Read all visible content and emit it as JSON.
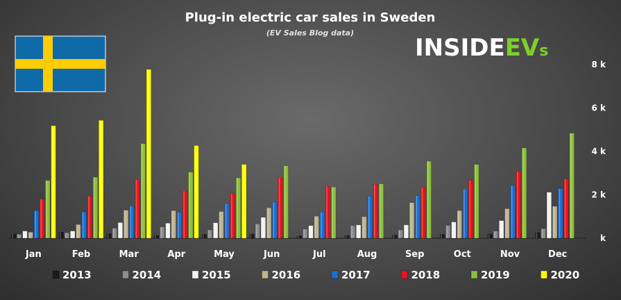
{
  "chart_data": {
    "type": "bar",
    "title": "Plug-in electric car sales in Sweden",
    "subtitle": "(EV Sales Blog data)",
    "logo_text": "INSIDEEVs",
    "categories": [
      "Jan",
      "Feb",
      "Mar",
      "Apr",
      "May",
      "Jun",
      "Jul",
      "Aug",
      "Sep",
      "Oct",
      "Nov",
      "Dec"
    ],
    "y_ticks": [
      {
        "value": 0,
        "label": "k"
      },
      {
        "value": 2000,
        "label": "2 k"
      },
      {
        "value": 4000,
        "label": "4 k"
      },
      {
        "value": 6000,
        "label": "6 k"
      },
      {
        "value": 8000,
        "label": "8 k"
      }
    ],
    "ylim": [
      0,
      8500
    ],
    "y_axis_side": "right",
    "grid": false,
    "legend_position": "bottom",
    "series": [
      {
        "name": "2013",
        "color": "#1a1a1a",
        "values": [
          200,
          280,
          210,
          130,
          180,
          200,
          110,
          120,
          140,
          180,
          200,
          270
        ]
      },
      {
        "name": "2014",
        "color": "#8c8c8c",
        "values": [
          180,
          250,
          460,
          520,
          380,
          660,
          420,
          580,
          380,
          590,
          330,
          440
        ]
      },
      {
        "name": "2015",
        "color": "#f2f2f2",
        "values": [
          330,
          330,
          720,
          690,
          710,
          960,
          580,
          610,
          610,
          750,
          810,
          2120
        ]
      },
      {
        "name": "2016",
        "color": "#bdb38f",
        "values": [
          280,
          630,
          1290,
          1270,
          1230,
          1400,
          1010,
          990,
          1640,
          1270,
          1360,
          1470
        ]
      },
      {
        "name": "2017",
        "color": "#1a6fd4",
        "values": [
          1270,
          1210,
          1480,
          1200,
          1600,
          1660,
          1210,
          1940,
          1960,
          2260,
          2420,
          2290
        ]
      },
      {
        "name": "2018",
        "color": "#e8141e",
        "values": [
          1800,
          1940,
          2700,
          2190,
          2060,
          2790,
          2390,
          2490,
          2360,
          2670,
          3070,
          2730
        ]
      },
      {
        "name": "2019",
        "color": "#8cbf3c",
        "values": [
          2660,
          2810,
          4360,
          3040,
          2780,
          3340,
          2360,
          2510,
          3550,
          3400,
          4160,
          4840
        ]
      },
      {
        "name": "2020",
        "color": "#ffff00",
        "values": [
          5180,
          5430,
          7780,
          4270,
          3400,
          null,
          null,
          null,
          null,
          null,
          null,
          null
        ]
      }
    ]
  }
}
